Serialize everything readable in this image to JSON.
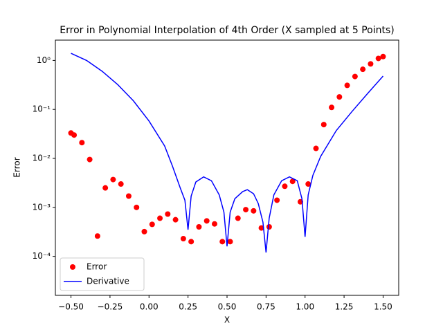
{
  "chart_data": {
    "type": "scatter-line",
    "title": "Error in Polynomial Interpolation of 4th Order (X sampled at 5 Points)",
    "x_label": "X",
    "y_label": "Error",
    "yscale": "log",
    "xlim": [
      -0.6,
      1.6
    ],
    "ylim": [
      1.6e-05,
      2.6
    ],
    "xticks": [
      {
        "value": -0.5,
        "label": "−0.50"
      },
      {
        "value": -0.25,
        "label": "−0.25"
      },
      {
        "value": 0,
        "label": "0.00"
      },
      {
        "value": 0.25,
        "label": "0.25"
      },
      {
        "value": 0.5,
        "label": "0.50"
      },
      {
        "value": 0.75,
        "label": "0.75"
      },
      {
        "value": 1,
        "label": "1.00"
      },
      {
        "value": 1.25,
        "label": "1.25"
      },
      {
        "value": 1.5,
        "label": "1.50"
      }
    ],
    "yticks": [
      {
        "value": 0.0001,
        "label": "10⁻⁴"
      },
      {
        "value": 0.001,
        "label": "10⁻³"
      },
      {
        "value": 0.01,
        "label": "10⁻²"
      },
      {
        "value": 0.1,
        "label": "10⁻¹"
      },
      {
        "value": 1,
        "label": "10⁰"
      }
    ],
    "legend": "lower left",
    "series": [
      {
        "name": "Error",
        "color": "#ff0000",
        "style": "markers",
        "x": [
          -0.5,
          -0.48,
          -0.43,
          -0.38,
          -0.33,
          -0.28,
          -0.23,
          -0.18,
          -0.13,
          -0.08,
          -0.03,
          0.02,
          0.07,
          0.12,
          0.17,
          0.22,
          0.27,
          0.32,
          0.37,
          0.42,
          0.47,
          0.52,
          0.57,
          0.62,
          0.67,
          0.72,
          0.77,
          0.82,
          0.87,
          0.92,
          0.97,
          1.02,
          1.07,
          1.12,
          1.17,
          1.22,
          1.27,
          1.32,
          1.37,
          1.42,
          1.47,
          1.5
        ],
        "values": [
          0.033,
          0.03,
          0.021,
          0.0095,
          0.00026,
          0.0025,
          0.0037,
          0.003,
          0.0017,
          0.001,
          0.00032,
          0.00045,
          0.0006,
          0.00073,
          0.00056,
          0.00023,
          0.0002,
          0.0004,
          0.00053,
          0.00046,
          0.0002,
          0.0002,
          0.0006,
          0.0009,
          0.00085,
          0.00038,
          0.0004,
          0.0014,
          0.0027,
          0.0034,
          0.0013,
          0.003,
          0.016,
          0.049,
          0.11,
          0.18,
          0.31,
          0.47,
          0.66,
          0.85,
          1.1,
          1.2
        ]
      },
      {
        "name": "Derivative",
        "color": "#0000ff",
        "style": "line",
        "x": [
          -0.5,
          -0.4,
          -0.3,
          -0.2,
          -0.1,
          0,
          0.1,
          0.15,
          0.2,
          0.23,
          0.25,
          0.27,
          0.3,
          0.35,
          0.4,
          0.45,
          0.48,
          0.5,
          0.52,
          0.55,
          0.6,
          0.63,
          0.67,
          0.7,
          0.73,
          0.75,
          0.77,
          0.8,
          0.85,
          0.9,
          0.95,
          0.98,
          1,
          1.02,
          1.05,
          1.1,
          1.2,
          1.3,
          1.4,
          1.5
        ],
        "values": [
          1.4,
          1.0,
          0.6,
          0.32,
          0.15,
          0.058,
          0.018,
          0.007,
          0.0025,
          0.0014,
          0.00035,
          0.0017,
          0.0033,
          0.0042,
          0.0035,
          0.0018,
          0.0008,
          0.00016,
          0.0008,
          0.0015,
          0.0021,
          0.0023,
          0.0019,
          0.0012,
          0.0005,
          0.00012,
          0.0006,
          0.0018,
          0.0035,
          0.0042,
          0.0035,
          0.0015,
          0.00025,
          0.0018,
          0.0045,
          0.011,
          0.037,
          0.09,
          0.21,
          0.48
        ]
      }
    ]
  }
}
